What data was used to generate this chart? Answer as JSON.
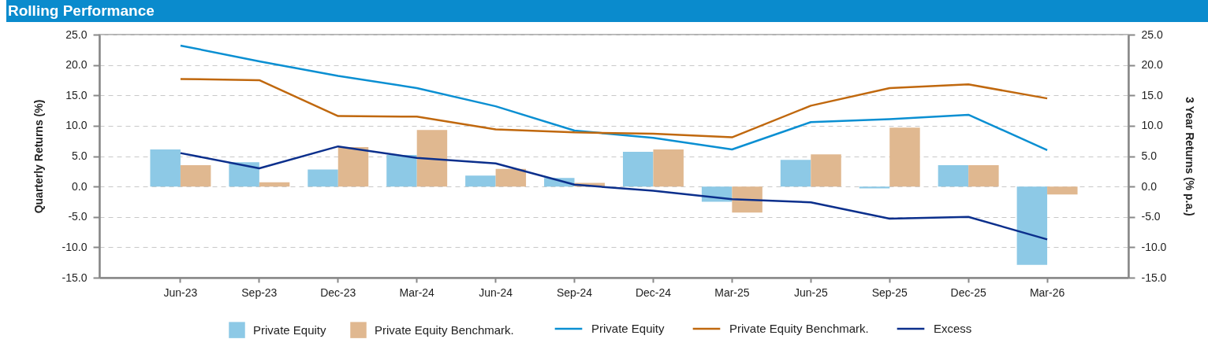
{
  "chart_data": {
    "type": "bar",
    "title": "Rolling Performance",
    "ylabel": "Quarterly Returns (%)",
    "y2label": "3 Year Returns (% p.a.)",
    "categories": [
      "Jun-23",
      "Sep-23",
      "Dec-23",
      "Mar-24",
      "Jun-24",
      "Sep-24",
      "Dec-24",
      "Mar-25",
      "Jun-25",
      "Sep-25",
      "Dec-25",
      "Mar-26"
    ],
    "series": [
      {
        "name": "Private Equity",
        "color": "#8dc9e6",
        "values": [
          6.1,
          4.0,
          2.8,
          5.2,
          1.8,
          1.4,
          5.7,
          -2.5,
          4.4,
          -0.3,
          3.5,
          -12.9
        ]
      },
      {
        "name": "Private Equity Benchmark.",
        "color": "#e0b890",
        "values": [
          3.5,
          0.7,
          6.5,
          9.3,
          2.9,
          0.6,
          6.1,
          -4.3,
          5.3,
          9.7,
          3.5,
          -1.3
        ]
      },
      {
        "name": "Private Equity",
        "type": "line",
        "axis": "y2",
        "color": "#0a8fd2",
        "values": [
          23.2,
          20.6,
          18.2,
          16.2,
          13.2,
          9.2,
          8.0,
          6.1,
          10.6,
          11.1,
          11.8,
          6.0
        ]
      },
      {
        "name": "Private Equity Benchmark.",
        "type": "line",
        "axis": "y2",
        "color": "#c0680e",
        "values": [
          17.7,
          17.5,
          11.6,
          11.5,
          9.4,
          8.9,
          8.7,
          8.1,
          13.3,
          16.2,
          16.8,
          14.5
        ]
      },
      {
        "name": "Excess",
        "type": "line",
        "axis": "y2",
        "color": "#0b2f8c",
        "values": [
          5.5,
          3.0,
          6.6,
          4.7,
          3.8,
          0.3,
          -0.7,
          -2.1,
          -2.6,
          -5.3,
          -5.0,
          -8.7
        ]
      }
    ],
    "ylim": [
      -15,
      25
    ],
    "yticks": [
      {
        "value": -15,
        "label": "-15.0"
      },
      {
        "value": -10,
        "label": "-10.0"
      },
      {
        "value": -5,
        "label": "-5.0"
      },
      {
        "value": 0,
        "label": "0.0"
      },
      {
        "value": 5,
        "label": "5.0"
      },
      {
        "value": 10,
        "label": "10.0"
      },
      {
        "value": 15,
        "label": "15.0"
      },
      {
        "value": 20,
        "label": "20.0"
      },
      {
        "value": 25,
        "label": "25.0"
      }
    ],
    "y2lim": [
      -15,
      25
    ],
    "y2ticks": [
      {
        "value": -15,
        "label": "-15.0"
      },
      {
        "value": -10,
        "label": "-10.0"
      },
      {
        "value": -5,
        "label": "-5.0"
      },
      {
        "value": 0,
        "label": "0.0"
      },
      {
        "value": 5,
        "label": "5.0"
      },
      {
        "value": 10,
        "label": "10.0"
      },
      {
        "value": 15,
        "label": "15.0"
      },
      {
        "value": 20,
        "label": "20.0"
      },
      {
        "value": 25,
        "label": "25.0"
      }
    ],
    "grid": "y",
    "legend": "bottom"
  }
}
